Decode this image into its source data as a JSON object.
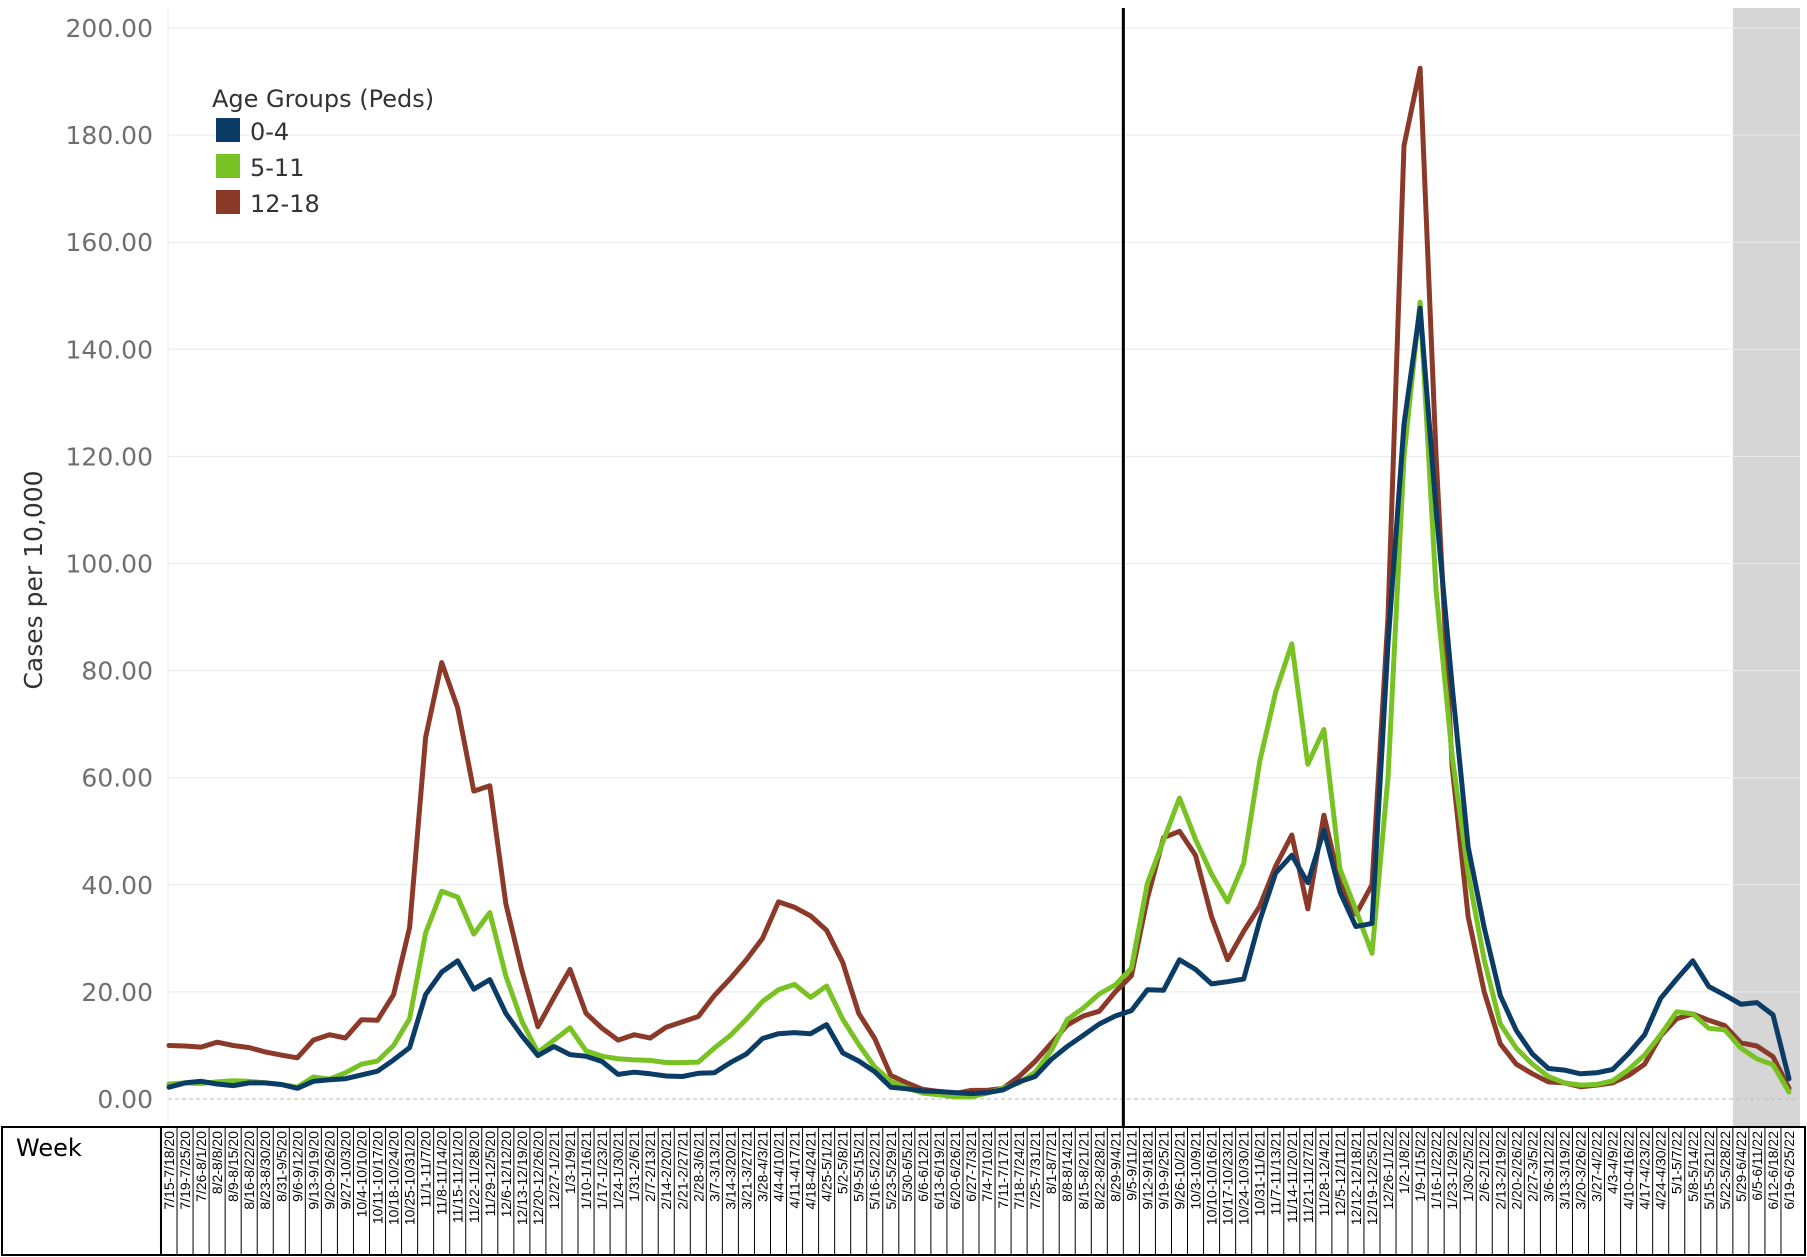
{
  "chart_data": {
    "type": "line",
    "title": "",
    "ylabel": "Cases per 10,000",
    "xlabel": "Week",
    "ylim": [
      0,
      200
    ],
    "yticks": [
      "0.00",
      "20.00",
      "40.00",
      "60.00",
      "80.00",
      "100.00",
      "120.00",
      "140.00",
      "160.00",
      "180.00",
      "200.00"
    ],
    "grid": "horizontal",
    "legend": {
      "title": "Age Groups (Peds)",
      "position": "top-left"
    },
    "reference_line_after": "8/29-9/4/21",
    "shaded_region_from": "5/29-6/4/22",
    "categories": [
      "7/15-7/18/20",
      "7/19-7/25/20",
      "7/26-8/1/20",
      "8/2-8/8/20",
      "8/9-8/15/20",
      "8/16-8/22/20",
      "8/23-8/30/20",
      "8/31-9/5/20",
      "9/6-9/12/20",
      "9/13-9/19/20",
      "9/20-9/26/20",
      "9/27-10/3/20",
      "10/4-10/10/20",
      "10/11-10/17/20",
      "10/18-10/24/20",
      "10/25-10/31/20",
      "11/1-11/7/20",
      "11/8-11/14/20",
      "11/15-11/21/20",
      "11/22-11/28/20",
      "11/29-12/5/20",
      "12/6-12/12/20",
      "12/13-12/19/20",
      "12/20-12/26/20",
      "12/27-1/2/21",
      "1/3-1/9/21",
      "1/10-1/16/21",
      "1/17-1/23/21",
      "1/24-1/30/21",
      "1/31-2/6/21",
      "2/7-2/13/21",
      "2/14-2/20/21",
      "2/21-2/27/21",
      "2/28-3/6/21",
      "3/7-3/13/21",
      "3/14-3/20/21",
      "3/21-3/27/21",
      "3/28-4/3/21",
      "4/4-4/10/21",
      "4/11-4/17/21",
      "4/18-4/24/21",
      "4/25-5/1/21",
      "5/2-5/8/21",
      "5/9-5/15/21",
      "5/16-5/22/21",
      "5/23-5/29/21",
      "5/30-6/5/21",
      "6/6-6/12/21",
      "6/13-6/19/21",
      "6/20-6/26/21",
      "6/27-7/3/21",
      "7/4-7/10/21",
      "7/11-7/17/21",
      "7/18-7/24/21",
      "7/25-7/31/21",
      "8/1-8/7/21",
      "8/8-8/14/21",
      "8/15-8/21/21",
      "8/22-8/28/21",
      "8/29-9/4/21",
      "9/5-9/11/21",
      "9/12-9/18/21",
      "9/19-9/25/21",
      "9/26-10/2/21",
      "10/3-10/9/21",
      "10/10-10/16/21",
      "10/17-10/23/21",
      "10/24-10/30/21",
      "10/31-11/6/21",
      "11/7-11/13/21",
      "11/14-11/20/21",
      "11/21-11/27/21",
      "11/28-12/4/21",
      "12/5-12/11/21",
      "12/12-12/18/21",
      "12/19-12/25/21",
      "12/26-1/1/22",
      "1/2-1/8/22",
      "1/9-1/15/22",
      "1/16-1/22/22",
      "1/23-1/29/22",
      "1/30-2/5/22",
      "2/6-2/12/22",
      "2/13-2/19/22",
      "2/20-2/26/22",
      "2/27-3/5/22",
      "3/6-3/12/22",
      "3/13-3/19/22",
      "3/20-3/26/22",
      "3/27-4/2/22",
      "4/3-4/9/22",
      "4/10-4/16/22",
      "4/17-4/23/22",
      "4/24-4/30/22",
      "5/1-5/7/22",
      "5/8-5/14/22",
      "5/15-5/21/22",
      "5/22-5/28/22",
      "5/29-6/4/22",
      "6/5-6/11/22",
      "6/12-6/18/22",
      "6/19-6/25/22"
    ],
    "series": [
      {
        "name": "0-4",
        "color": "#0b3c66",
        "values": [
          2.2,
          3.0,
          3.3,
          2.8,
          2.5,
          3.0,
          3.0,
          2.7,
          2.0,
          3.3,
          3.6,
          3.8,
          4.5,
          5.2,
          7.3,
          9.6,
          19.5,
          23.7,
          25.8,
          20.5,
          22.3,
          16.0,
          11.8,
          8.1,
          9.8,
          8.3,
          8.0,
          7.0,
          4.6,
          5.0,
          4.7,
          4.3,
          4.2,
          4.8,
          4.9,
          6.8,
          8.4,
          11.3,
          12.2,
          12.4,
          12.2,
          13.9,
          8.6,
          7.1,
          5.1,
          2.2,
          1.9,
          1.5,
          1.4,
          1.2,
          1.0,
          1.2,
          1.7,
          3.2,
          4.2,
          7.4,
          9.8,
          11.9,
          14.0,
          15.5,
          16.5,
          20.4,
          20.3,
          26.0,
          24.2,
          21.5,
          21.9,
          22.4,
          33.3,
          42.2,
          45.5,
          40.4,
          50.2,
          38.7,
          32.2,
          32.8,
          85.0,
          126.0,
          147.7,
          110.0,
          77.0,
          47.0,
          32.0,
          19.3,
          12.8,
          8.4,
          5.7,
          5.4,
          4.7,
          4.9,
          5.5,
          8.5,
          12.0,
          18.8,
          22.4,
          25.8,
          21.0,
          19.4,
          17.7,
          18.0,
          15.7,
          3.8
        ]
      },
      {
        "name": "5-11",
        "color": "#78c224",
        "values": [
          2.8,
          3.0,
          2.9,
          3.2,
          3.4,
          3.3,
          3.0,
          2.7,
          2.2,
          4.1,
          3.7,
          4.9,
          6.5,
          7.1,
          10.0,
          15.0,
          31.0,
          38.8,
          37.7,
          30.8,
          34.8,
          23.0,
          14.5,
          8.7,
          11.0,
          13.3,
          9.0,
          8.0,
          7.5,
          7.3,
          7.2,
          6.8,
          6.8,
          6.9,
          9.5,
          11.9,
          14.9,
          18.2,
          20.4,
          21.4,
          19.0,
          21.1,
          14.9,
          10.2,
          6.0,
          3.3,
          2.1,
          1.1,
          0.8,
          0.4,
          0.4,
          1.1,
          2.0,
          3.0,
          5.0,
          9.0,
          14.8,
          17.0,
          19.6,
          21.3,
          24.4,
          40.3,
          48.3,
          56.2,
          48.5,
          42.0,
          36.8,
          44.0,
          63.0,
          76.0,
          85.0,
          62.5,
          69.0,
          43.0,
          35.3,
          27.2,
          60.0,
          120.0,
          148.8,
          95.0,
          64.0,
          42.0,
          26.0,
          14.0,
          9.5,
          6.5,
          4.2,
          3.0,
          2.6,
          2.7,
          3.4,
          5.5,
          8.2,
          12.0,
          16.3,
          15.9,
          13.2,
          12.9,
          9.5,
          7.5,
          6.4,
          1.3
        ]
      },
      {
        "name": "12-18",
        "color": "#8b3a2a",
        "values": [
          10.0,
          9.9,
          9.7,
          10.6,
          10.0,
          9.6,
          8.8,
          8.2,
          7.7,
          11.0,
          12.0,
          11.4,
          14.8,
          14.7,
          19.5,
          32.0,
          67.5,
          81.5,
          73.0,
          57.5,
          58.5,
          36.5,
          24.0,
          13.5,
          19.0,
          24.2,
          16.0,
          13.2,
          11.0,
          12.0,
          11.4,
          13.4,
          14.4,
          15.4,
          19.3,
          22.5,
          26.0,
          30.0,
          36.8,
          35.8,
          34.2,
          31.5,
          25.5,
          16.0,
          11.3,
          4.4,
          3.0,
          1.8,
          1.4,
          1.0,
          1.6,
          1.6,
          2.0,
          4.2,
          7.0,
          10.4,
          13.8,
          15.5,
          16.4,
          20.0,
          23.0,
          37.5,
          48.8,
          50.0,
          45.5,
          34.0,
          26.0,
          31.3,
          36.0,
          43.5,
          49.3,
          35.5,
          53.0,
          40.3,
          34.5,
          40.0,
          90.0,
          178.0,
          192.5,
          120.0,
          62.0,
          34.0,
          20.0,
          10.3,
          6.5,
          4.7,
          3.2,
          3.0,
          2.3,
          2.6,
          3.0,
          4.4,
          6.5,
          11.8,
          15.0,
          15.9,
          14.7,
          13.7,
          10.5,
          9.9,
          7.9,
          2.0
        ]
      }
    ]
  }
}
